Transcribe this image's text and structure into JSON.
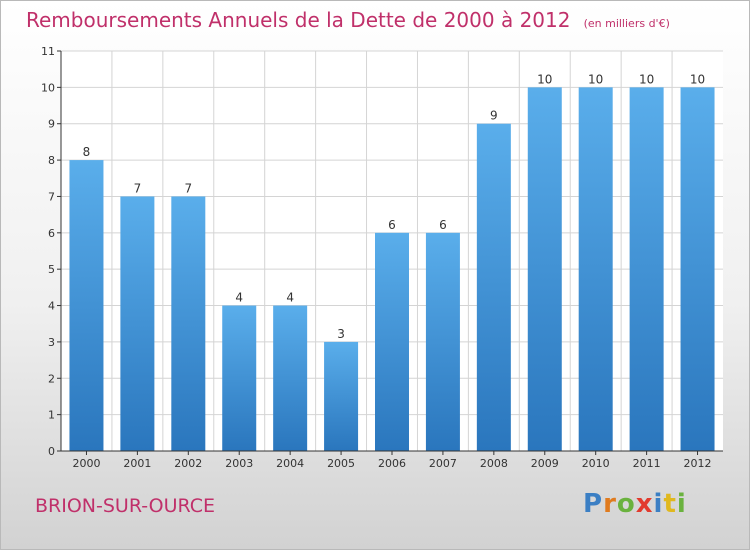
{
  "chart_data": {
    "type": "bar",
    "title": "Remboursements Annuels de la Dette de 2000 à 2012",
    "subtitle": "(en milliers d'€)",
    "categories": [
      "2000",
      "2001",
      "2002",
      "2003",
      "2004",
      "2005",
      "2006",
      "2007",
      "2008",
      "2009",
      "2010",
      "2011",
      "2012"
    ],
    "values": [
      8,
      7,
      7,
      4,
      4,
      3,
      6,
      6,
      9,
      10,
      10,
      10,
      10
    ],
    "ylim": [
      0,
      11
    ],
    "yticks": [
      0,
      1,
      2,
      3,
      4,
      5,
      6,
      7,
      8,
      9,
      10,
      11
    ],
    "grid": true,
    "data_labels": true,
    "bar_color": "#3a8fd6"
  },
  "commune": "BRION-SUR-OURCE",
  "logo": {
    "text": "Proxiti",
    "letters": [
      {
        "ch": "P",
        "color": "#3b7fc4"
      },
      {
        "ch": "r",
        "color": "#e07b1e"
      },
      {
        "ch": "o",
        "color": "#6ab23e"
      },
      {
        "ch": "x",
        "color": "#e23b2e"
      },
      {
        "ch": "i",
        "color": "#3b7fc4"
      },
      {
        "ch": "t",
        "color": "#e0b81e"
      },
      {
        "ch": "i",
        "color": "#6ab23e"
      }
    ]
  },
  "colors": {
    "title": "#c0306a",
    "axis": "#333333",
    "grid": "#d4d4d4"
  }
}
